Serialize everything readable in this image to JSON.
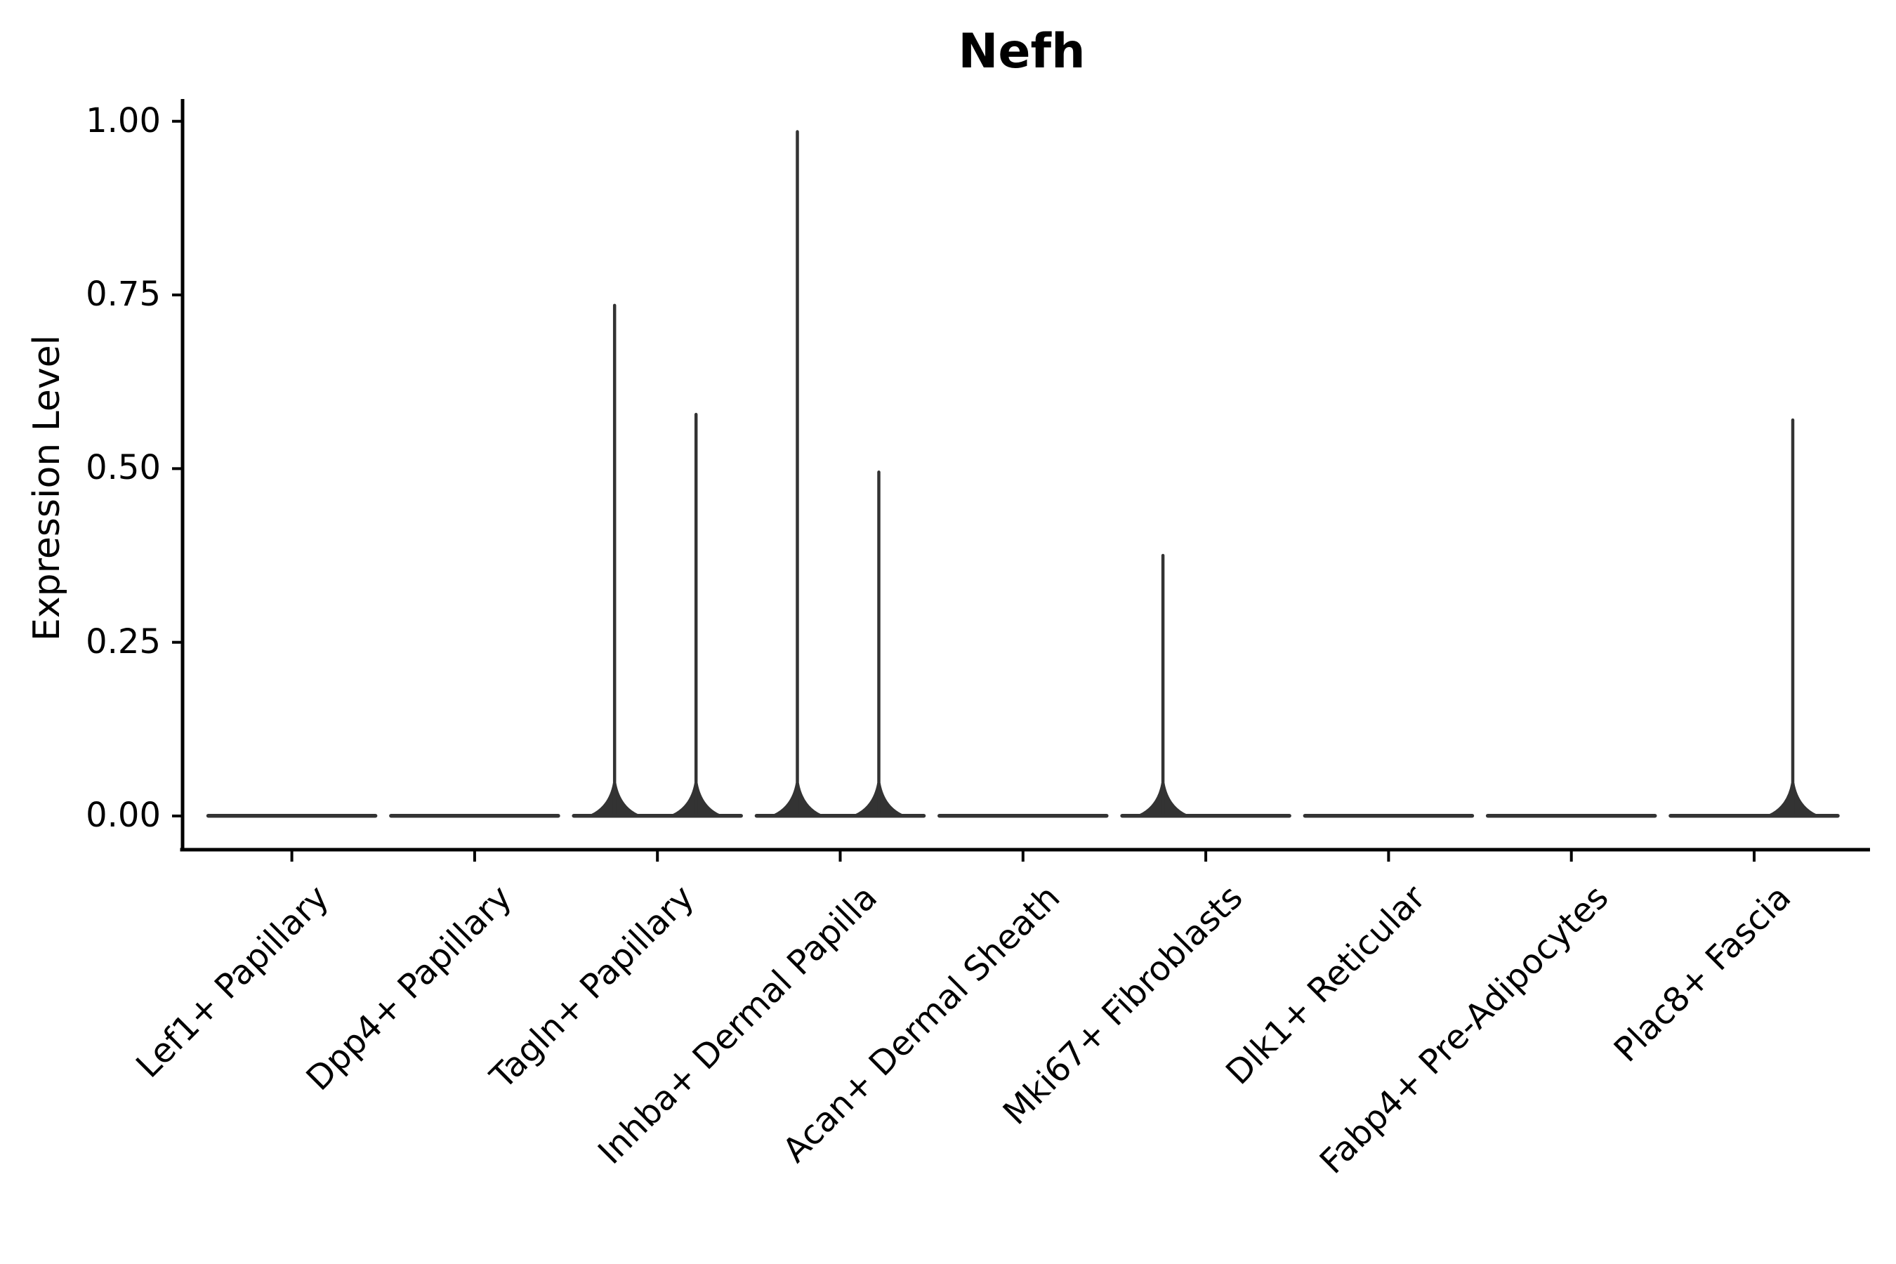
{
  "title": "Nefh",
  "y_axis": {
    "label": "Expression Level",
    "tick_labels": [
      "1.00",
      "0.75",
      "0.50",
      "0.25",
      "0.00"
    ]
  },
  "colors": {
    "background": "#ffffff",
    "axis": "#000000",
    "text": "#000000",
    "violin_stroke": "#333333"
  },
  "chart_data": {
    "type": "violin",
    "title": "Nefh",
    "xlabel": "",
    "ylabel": "Expression Level",
    "ylim": [
      0,
      1.0
    ],
    "yticks": [
      1.0,
      0.75,
      0.5,
      0.25,
      0.0
    ],
    "grid": false,
    "legend": false,
    "categories": [
      "Lef1+ Papillary",
      "Dpp4+ Papillary",
      "Tagln+ Papillary",
      "Inhba+ Dermal Papilla",
      "Acan+ Dermal Sheath",
      "Mki67+ Fibroblasts",
      "Dlk1+ Reticular",
      "Fabp4+ Pre-Adipocytes",
      "Plac8+ Fascia"
    ],
    "violins": [
      {
        "category": "Lef1+ Papillary",
        "baseline": 0.0,
        "spikes": []
      },
      {
        "category": "Dpp4+ Papillary",
        "baseline": 0.0,
        "spikes": []
      },
      {
        "category": "Tagln+ Papillary",
        "baseline": 0.0,
        "spikes": [
          {
            "position": "left",
            "peak": 0.735
          },
          {
            "position": "right",
            "peak": 0.578
          }
        ]
      },
      {
        "category": "Inhba+ Dermal Papilla",
        "baseline": 0.0,
        "spikes": [
          {
            "position": "left",
            "peak": 0.985
          },
          {
            "position": "right",
            "peak": 0.495
          }
        ]
      },
      {
        "category": "Acan+ Dermal Sheath",
        "baseline": 0.0,
        "spikes": []
      },
      {
        "category": "Mki67+ Fibroblasts",
        "baseline": 0.0,
        "spikes": [
          {
            "position": "left",
            "peak": 0.375
          }
        ]
      },
      {
        "category": "Dlk1+ Reticular",
        "baseline": 0.0,
        "spikes": []
      },
      {
        "category": "Fabp4+ Pre-Adipocytes",
        "baseline": 0.0,
        "spikes": []
      },
      {
        "category": "Plac8+ Fascia",
        "baseline": 0.0,
        "spikes": [
          {
            "position": "right",
            "peak": 0.57
          }
        ]
      }
    ]
  }
}
